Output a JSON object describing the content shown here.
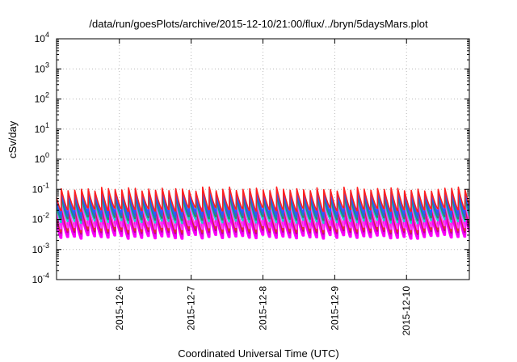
{
  "chart_data": {
    "type": "line",
    "title": "/data/run/goesPlots/archive/2015-12-10/21:00/flux/../bryn/5daysMars.plot",
    "xlabel": "Coordinated Universal Time (UTC)",
    "ylabel": "cSv/day",
    "yscale": "log",
    "ylim": [
      0.0001,
      10000
    ],
    "y_tick_exponents": [
      -4,
      -3,
      -2,
      -1,
      0,
      1,
      2,
      3,
      4
    ],
    "y_tick_base": "10",
    "xlim": [
      "2015-12-05T03:00",
      "2015-12-10T21:00"
    ],
    "x_ticks": [
      "2015-12-6",
      "2015-12-7",
      "2015-12-8",
      "2015-12-9",
      "2015-12-10"
    ],
    "x_tick_dates": [
      "2015-12-06T00:00",
      "2015-12-07T00:00",
      "2015-12-08T00:00",
      "2015-12-09T00:00",
      "2015-12-10T00:00"
    ],
    "grid": true,
    "pattern": "sawtooth",
    "cycle_hours": 2.25,
    "series": [
      {
        "color": "#ff00ff",
        "low": 0.0025,
        "high": 0.016
      },
      {
        "color": "#ee00ee",
        "low": 0.003,
        "high": 0.02
      },
      {
        "color": "#c0008a",
        "low": 0.0035,
        "high": 0.025
      },
      {
        "color": "#e03030",
        "low": 0.004,
        "high": 0.03
      },
      {
        "color": "#ff40ff",
        "low": 0.005,
        "high": 0.035
      },
      {
        "color": "#22cccc",
        "low": 0.008,
        "high": 0.045
      },
      {
        "color": "#2a8a6a",
        "low": 0.01,
        "high": 0.055
      },
      {
        "color": "#1f6fd0",
        "low": 0.012,
        "high": 0.07
      },
      {
        "color": "#3355ff",
        "low": 0.015,
        "high": 0.085
      },
      {
        "color": "#ff2020",
        "low": 0.02,
        "high": 0.1
      }
    ]
  }
}
